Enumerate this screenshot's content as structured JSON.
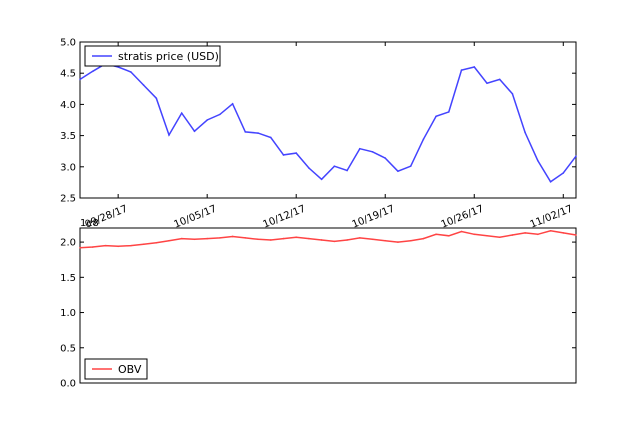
{
  "chart_data": [
    {
      "type": "line",
      "x": [
        "09/25/17",
        "09/26/17",
        "09/27/17",
        "09/28/17",
        "09/29/17",
        "09/30/17",
        "10/01/17",
        "10/02/17",
        "10/03/17",
        "10/04/17",
        "10/05/17",
        "10/06/17",
        "10/07/17",
        "10/08/17",
        "10/09/17",
        "10/10/17",
        "10/11/17",
        "10/12/17",
        "10/13/17",
        "10/14/17",
        "10/15/17",
        "10/16/17",
        "10/17/17",
        "10/18/17",
        "10/19/17",
        "10/20/17",
        "10/21/17",
        "10/22/17",
        "10/23/17",
        "10/24/17",
        "10/25/17",
        "10/26/17",
        "10/27/17",
        "10/28/17",
        "10/29/17",
        "10/30/17",
        "10/31/17",
        "11/01/17",
        "11/02/17",
        "11/03/17"
      ],
      "series": [
        {
          "name": "stratis price (USD)",
          "color": "#4444ff",
          "values": [
            4.4,
            4.53,
            4.65,
            4.6,
            4.52,
            4.31,
            4.1,
            3.51,
            3.86,
            3.57,
            3.75,
            3.84,
            4.01,
            3.56,
            3.54,
            3.47,
            3.19,
            3.22,
            2.98,
            2.8,
            3.01,
            2.94,
            3.29,
            3.24,
            3.14,
            2.93,
            3.01,
            3.44,
            3.81,
            3.88,
            4.55,
            4.6,
            4.34,
            4.4,
            4.17,
            3.55,
            3.1,
            2.76,
            2.9,
            3.17
          ]
        }
      ],
      "xticks": [
        "09/28/17",
        "10/05/17",
        "10/12/17",
        "10/19/17",
        "10/26/17",
        "11/02/17"
      ],
      "yticks": [
        "2.5",
        "3.0",
        "3.5",
        "4.0",
        "4.5",
        "5.0"
      ],
      "ylim": [
        2.5,
        5.0
      ],
      "legend_position": "top-left",
      "grid": false
    },
    {
      "type": "line",
      "x": [
        "09/25/17",
        "09/26/17",
        "09/27/17",
        "09/28/17",
        "09/29/17",
        "09/30/17",
        "10/01/17",
        "10/02/17",
        "10/03/17",
        "10/04/17",
        "10/05/17",
        "10/06/17",
        "10/07/17",
        "10/08/17",
        "10/09/17",
        "10/10/17",
        "10/11/17",
        "10/12/17",
        "10/13/17",
        "10/14/17",
        "10/15/17",
        "10/16/17",
        "10/17/17",
        "10/18/17",
        "10/19/17",
        "10/20/17",
        "10/21/17",
        "10/22/17",
        "10/23/17",
        "10/24/17",
        "10/25/17",
        "10/26/17",
        "10/27/17",
        "10/28/17",
        "10/29/17",
        "10/30/17",
        "10/31/17",
        "11/01/17",
        "11/02/17",
        "11/03/17"
      ],
      "series": [
        {
          "name": "OBV",
          "color": "#ff4444",
          "values": [
            192000000.0,
            193000000.0,
            195000000.0,
            194000000.0,
            195000000.0,
            197000000.0,
            199000000.0,
            202000000.0,
            205000000.0,
            204000000.0,
            205000000.0,
            206000000.0,
            208000000.0,
            206000000.0,
            204000000.0,
            203000000.0,
            205000000.0,
            207000000.0,
            205000000.0,
            203000000.0,
            201000000.0,
            203000000.0,
            206000000.0,
            204000000.0,
            202000000.0,
            200000000.0,
            202000000.0,
            205000000.0,
            211000000.0,
            209000000.0,
            215000000.0,
            211000000.0,
            209000000.0,
            207000000.0,
            210000000.0,
            213000000.0,
            211000000.0,
            216000000.0,
            213000000.0,
            210000000.0
          ]
        }
      ],
      "scale_label": "1e8",
      "yticks": [
        "0.0",
        "0.5",
        "1.0",
        "1.5",
        "2.0"
      ],
      "ylim": [
        0,
        220000000.0
      ],
      "legend_position": "bottom-left",
      "grid": false
    }
  ]
}
